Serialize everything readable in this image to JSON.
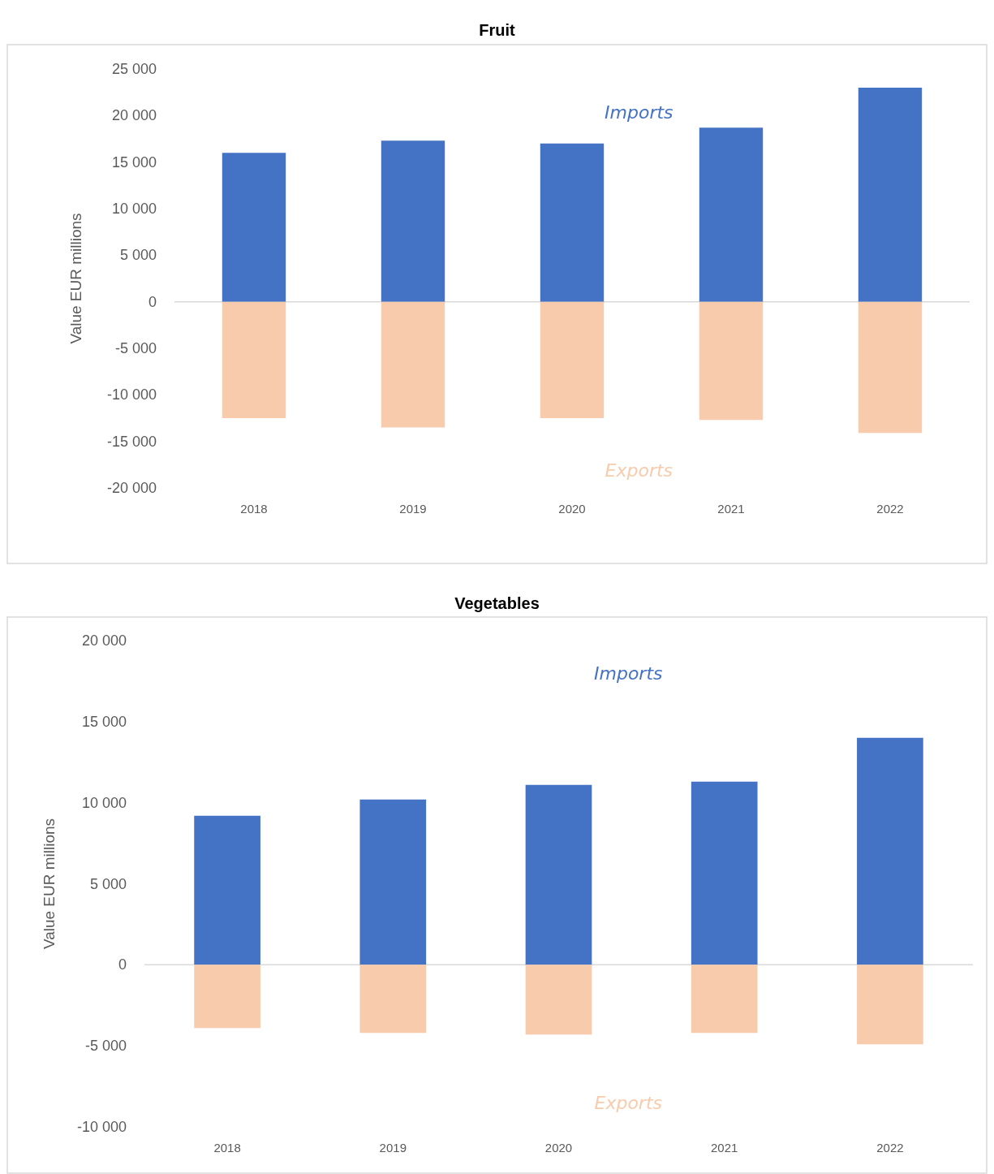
{
  "chart_data": [
    {
      "type": "bar",
      "title": "Fruit",
      "ylabel": "Value EUR millions",
      "categories": [
        "2018",
        "2019",
        "2020",
        "2021",
        "2022"
      ],
      "stacked": true,
      "legend": false,
      "grid": false,
      "series": [
        {
          "name": "Imports",
          "color": "#4472c4",
          "values": [
            16000,
            17300,
            17000,
            18700,
            23000
          ]
        },
        {
          "name": "Exports",
          "color": "#f8cbad",
          "values": [
            -12500,
            -13500,
            -12500,
            -12700,
            -14100
          ]
        }
      ],
      "ref_lines": [
        {
          "axis": "y",
          "value": 0,
          "color": "#d9d9d9"
        }
      ],
      "ylim": [
        -20000,
        25000
      ],
      "yticks": [
        {
          "value": -20000,
          "label": "-20 000"
        },
        {
          "value": -15000,
          "label": "-15 000"
        },
        {
          "value": -10000,
          "label": "-10 000"
        },
        {
          "value": -5000,
          "label": "-5 000"
        },
        0,
        {
          "value": 5000,
          "label": "5 000"
        },
        {
          "value": 10000,
          "label": "10 000"
        },
        {
          "value": 15000,
          "label": "15 000"
        },
        {
          "value": 20000,
          "label": "20 000"
        },
        {
          "value": 25000,
          "label": "25 000"
        }
      ]
    },
    {
      "type": "bar",
      "title": "Vegetables",
      "ylabel": "Value EUR millions",
      "categories": [
        "2018",
        "2019",
        "2020",
        "2021",
        "2022"
      ],
      "stacked": true,
      "legend": false,
      "grid": false,
      "series": [
        {
          "name": "Imports",
          "color": "#4472c4",
          "values": [
            9200,
            10200,
            11100,
            11300,
            14000
          ]
        },
        {
          "name": "Exports",
          "color": "#f8cbad",
          "values": [
            -3900,
            -4200,
            -4300,
            -4200,
            -4900
          ]
        }
      ],
      "ref_lines": [
        {
          "axis": "y",
          "value": 0,
          "color": "#d9d9d9"
        }
      ],
      "ylim": [
        -10000,
        20000
      ],
      "yticks": [
        {
          "value": -10000,
          "label": "-10 000"
        },
        {
          "value": -5000,
          "label": "-5 000"
        },
        0,
        {
          "value": 5000,
          "label": "5 000"
        },
        {
          "value": 10000,
          "label": "10 000"
        },
        {
          "value": 15000,
          "label": "15 000"
        },
        {
          "value": 20000,
          "label": "20 000"
        }
      ]
    }
  ]
}
